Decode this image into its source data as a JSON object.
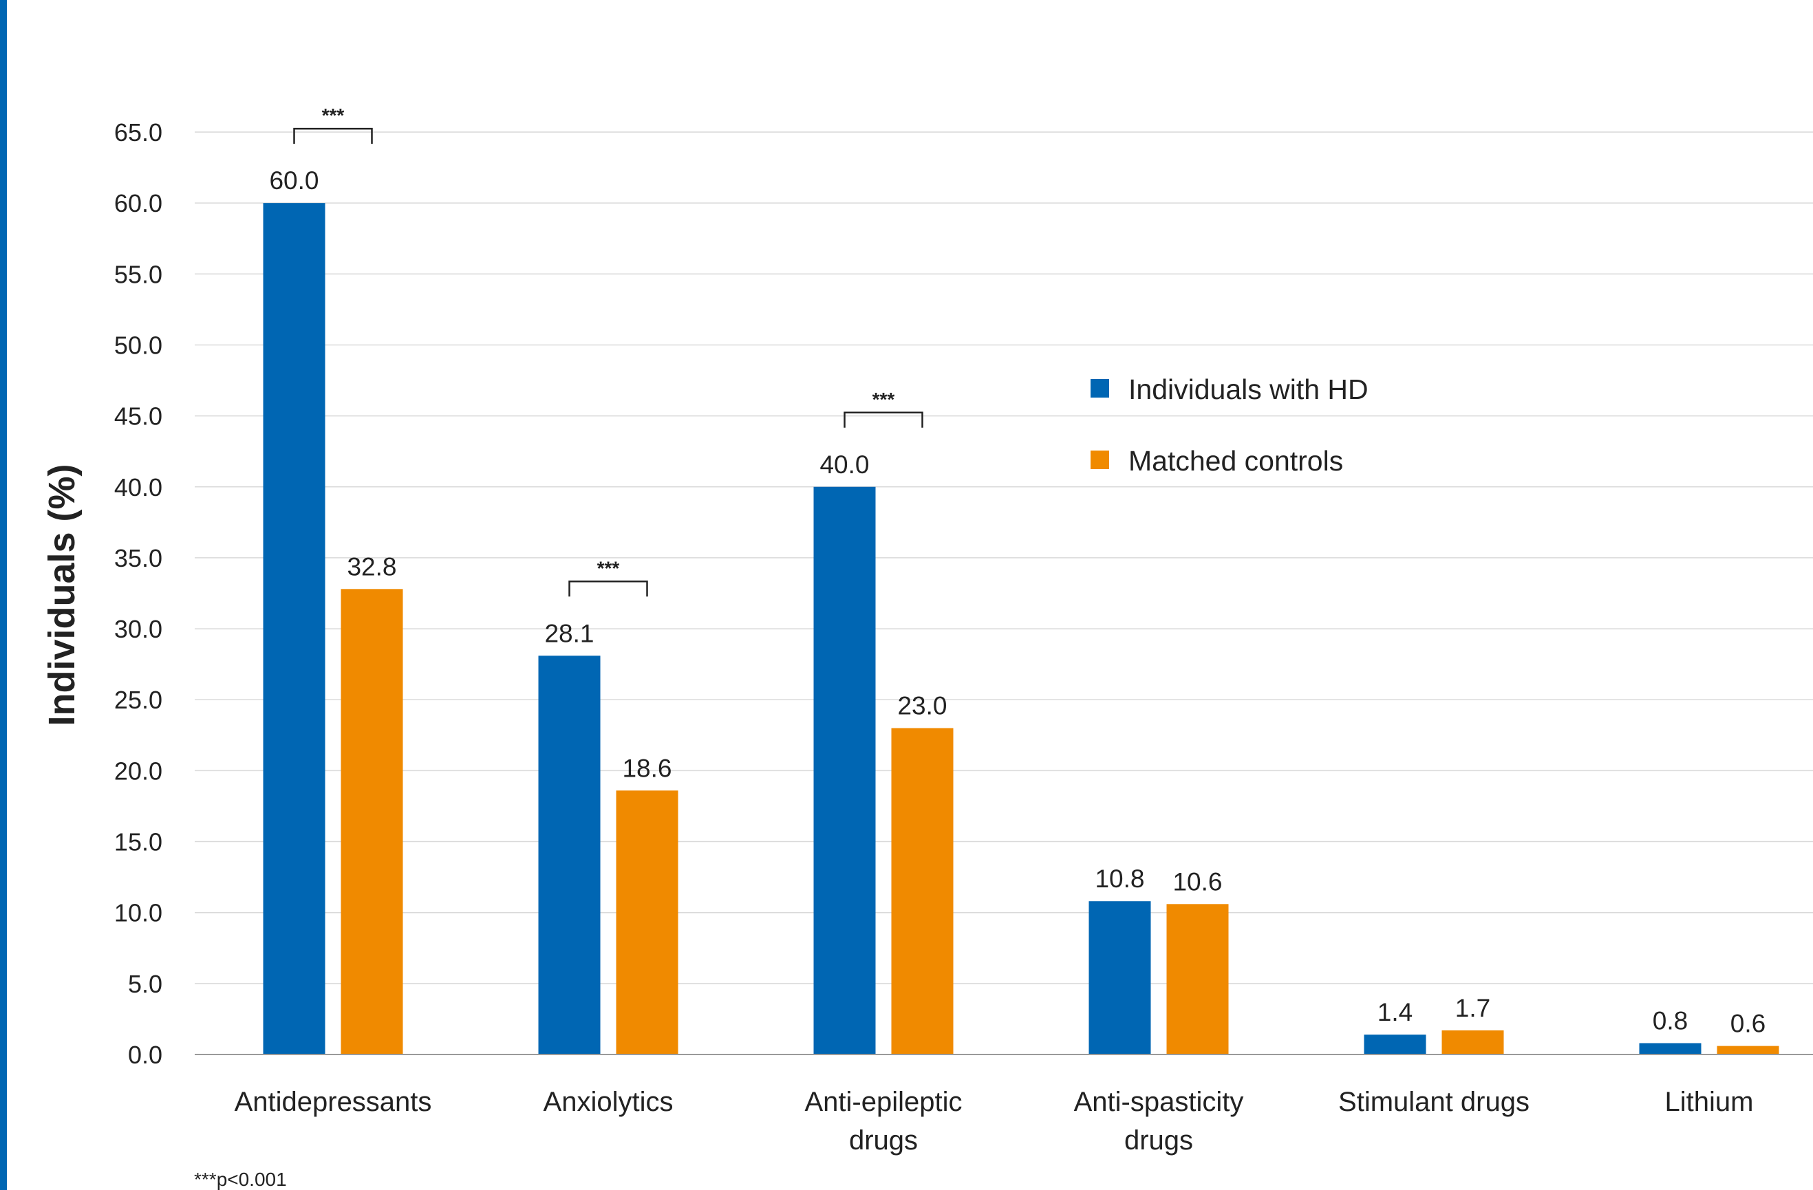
{
  "colors": {
    "hd": "#0066B3",
    "controls": "#F08A00",
    "accent": "#0066B3",
    "grid": "#d9d9d9",
    "axis": "#9a9a9a"
  },
  "chart_data": {
    "type": "bar",
    "title": "",
    "xlabel": "",
    "ylabel": "Individuals (%)",
    "ylim": [
      0,
      65
    ],
    "yticks": [
      "0.0",
      "5.0",
      "10.0",
      "15.0",
      "20.0",
      "25.0",
      "30.0",
      "35.0",
      "40.0",
      "45.0",
      "50.0",
      "55.0",
      "60.0",
      "65.0"
    ],
    "categories": [
      [
        "Antidepressants"
      ],
      [
        "Anxiolytics"
      ],
      [
        "Anti-epileptic",
        "drugs"
      ],
      [
        "Anti-spasticity",
        "drugs"
      ],
      [
        "Stimulant drugs"
      ],
      [
        "Lithium"
      ]
    ],
    "series": [
      {
        "name": "Individuals with HD",
        "values": [
          60.0,
          28.1,
          40.0,
          10.8,
          1.4,
          0.8
        ],
        "labels": [
          "60.0",
          "28.1",
          "40.0",
          "10.8",
          "1.4",
          "0.8"
        ]
      },
      {
        "name": "Matched controls",
        "values": [
          32.8,
          18.6,
          23.0,
          10.6,
          1.7,
          0.6
        ],
        "labels": [
          "32.8",
          "18.6",
          "23.0",
          "10.6",
          "1.7",
          "0.6"
        ]
      }
    ],
    "significance": [
      {
        "category_index": 0,
        "label": "***"
      },
      {
        "category_index": 1,
        "label": "***"
      },
      {
        "category_index": 2,
        "label": "***"
      }
    ],
    "legend_position": "center-right",
    "grid": true,
    "footnote": "***p<0.001"
  }
}
